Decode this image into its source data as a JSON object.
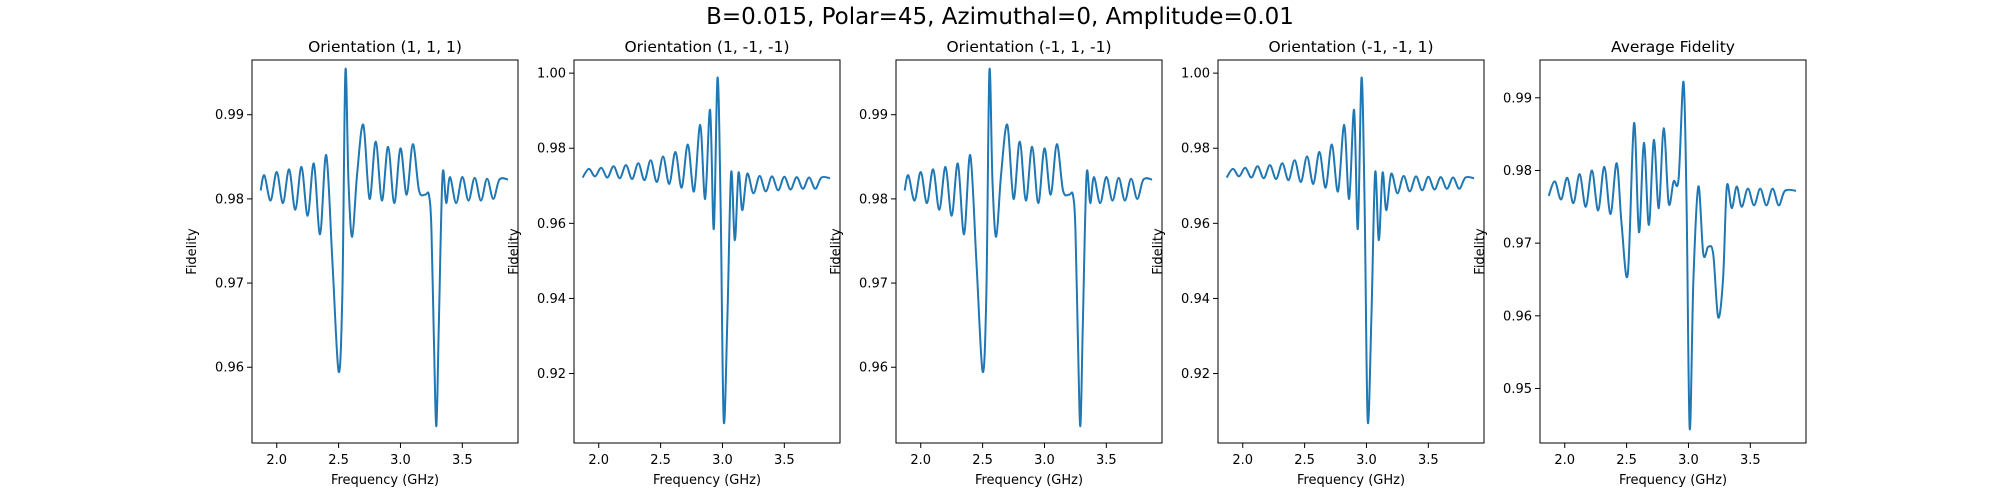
{
  "figure": {
    "suptitle": "B=0.015, Polar=45, Azimuthal=0, Amplitude=0.01"
  },
  "style": {
    "line_color": "#1f77b4",
    "axis_color": "#000000"
  },
  "chart_data": [
    {
      "type": "line",
      "title": "Orientation (1, 1, 1)",
      "xlabel": "Frequency (GHz)",
      "ylabel": "Fidelity",
      "xlim": [
        1.8,
        3.95
      ],
      "ylim": [
        0.951,
        0.9965
      ],
      "xticks": [
        "2.0",
        "2.5",
        "3.0",
        "3.5"
      ],
      "yticks": [
        "0.96",
        "0.97",
        "0.98",
        "0.99"
      ],
      "series": [
        {
          "x": [
            1.87,
            1.9,
            1.95,
            2.0,
            2.05,
            2.1,
            2.15,
            2.2,
            2.25,
            2.3,
            2.35,
            2.4,
            2.45,
            2.5,
            2.53,
            2.555,
            2.58,
            2.61,
            2.65,
            2.7,
            2.75,
            2.8,
            2.85,
            2.9,
            2.95,
            3.0,
            3.05,
            3.1,
            3.15,
            3.2,
            3.23,
            3.25,
            3.27,
            3.29,
            3.31,
            3.34,
            3.37,
            3.4,
            3.45,
            3.5,
            3.55,
            3.6,
            3.65,
            3.7,
            3.75,
            3.8,
            3.87
          ],
          "y": [
            0.981,
            0.9828,
            0.9798,
            0.9832,
            0.9795,
            0.9835,
            0.9787,
            0.9838,
            0.978,
            0.9842,
            0.9758,
            0.9852,
            0.9725,
            0.9595,
            0.9685,
            0.9952,
            0.982,
            0.9755,
            0.983,
            0.9888,
            0.98,
            0.9868,
            0.9798,
            0.9862,
            0.9795,
            0.986,
            0.9805,
            0.9865,
            0.981,
            0.9805,
            0.9805,
            0.9765,
            0.9635,
            0.953,
            0.965,
            0.9828,
            0.9795,
            0.9826,
            0.9795,
            0.9826,
            0.9798,
            0.9825,
            0.9798,
            0.9824,
            0.98,
            0.9823,
            0.9823
          ]
        }
      ]
    },
    {
      "type": "line",
      "title": "Orientation (1, -1, -1)",
      "xlabel": "Frequency (GHz)",
      "ylabel": "Fidelity",
      "xlim": [
        1.8,
        3.95
      ],
      "ylim": [
        0.9015,
        1.0035
      ],
      "xticks": [
        "2.0",
        "2.5",
        "3.0",
        "3.5"
      ],
      "yticks": [
        "0.92",
        "0.94",
        "0.96",
        "0.98",
        "1.00"
      ],
      "series": [
        {
          "x": [
            1.87,
            1.92,
            1.97,
            2.02,
            2.07,
            2.12,
            2.17,
            2.22,
            2.27,
            2.32,
            2.37,
            2.42,
            2.47,
            2.52,
            2.57,
            2.62,
            2.67,
            2.72,
            2.77,
            2.82,
            2.86,
            2.9,
            2.93,
            2.96,
            2.985,
            3.01,
            3.04,
            3.07,
            3.1,
            3.13,
            3.16,
            3.2,
            3.25,
            3.3,
            3.35,
            3.4,
            3.45,
            3.5,
            3.55,
            3.6,
            3.65,
            3.7,
            3.75,
            3.8,
            3.87
          ],
          "y": [
            0.9722,
            0.9745,
            0.9725,
            0.9748,
            0.9722,
            0.9752,
            0.972,
            0.9755,
            0.9718,
            0.976,
            0.9715,
            0.9768,
            0.971,
            0.9778,
            0.9705,
            0.979,
            0.9695,
            0.981,
            0.9685,
            0.9862,
            0.9665,
            0.9902,
            0.9585,
            0.9988,
            0.965,
            0.9075,
            0.935,
            0.9735,
            0.9555,
            0.9735,
            0.9635,
            0.9732,
            0.968,
            0.9726,
            0.9685,
            0.9725,
            0.9688,
            0.9724,
            0.969,
            0.9723,
            0.9692,
            0.9722,
            0.9692,
            0.9722,
            0.972
          ]
        }
      ]
    },
    {
      "type": "line",
      "title": "Orientation (-1, 1, -1)",
      "xlabel": "Frequency (GHz)",
      "ylabel": "Fidelity",
      "xlim": [
        1.8,
        3.95
      ],
      "ylim": [
        0.951,
        0.9965
      ],
      "xticks": [
        "2.0",
        "2.5",
        "3.0",
        "3.5"
      ],
      "yticks": [
        "0.96",
        "0.97",
        "0.98",
        "0.99"
      ],
      "series": [
        {
          "x": [
            1.87,
            1.9,
            1.95,
            2.0,
            2.05,
            2.1,
            2.15,
            2.2,
            2.25,
            2.3,
            2.35,
            2.4,
            2.45,
            2.5,
            2.53,
            2.555,
            2.58,
            2.61,
            2.65,
            2.7,
            2.75,
            2.8,
            2.85,
            2.9,
            2.95,
            3.0,
            3.05,
            3.1,
            3.15,
            3.2,
            3.23,
            3.25,
            3.27,
            3.29,
            3.31,
            3.34,
            3.37,
            3.4,
            3.45,
            3.5,
            3.55,
            3.6,
            3.65,
            3.7,
            3.75,
            3.8,
            3.87
          ],
          "y": [
            0.981,
            0.9828,
            0.9798,
            0.9832,
            0.9795,
            0.9835,
            0.9787,
            0.9838,
            0.978,
            0.9842,
            0.9758,
            0.9852,
            0.9725,
            0.9595,
            0.9685,
            0.9952,
            0.982,
            0.9755,
            0.983,
            0.9888,
            0.98,
            0.9868,
            0.9798,
            0.9862,
            0.9795,
            0.986,
            0.9805,
            0.9865,
            0.981,
            0.9805,
            0.9805,
            0.9765,
            0.9635,
            0.953,
            0.965,
            0.9828,
            0.9795,
            0.9826,
            0.9795,
            0.9826,
            0.9798,
            0.9825,
            0.9798,
            0.9824,
            0.98,
            0.9823,
            0.9823
          ]
        }
      ]
    },
    {
      "type": "line",
      "title": "Orientation (-1, -1, 1)",
      "xlabel": "Frequency (GHz)",
      "ylabel": "Fidelity",
      "xlim": [
        1.8,
        3.95
      ],
      "ylim": [
        0.9015,
        1.0035
      ],
      "xticks": [
        "2.0",
        "2.5",
        "3.0",
        "3.5"
      ],
      "yticks": [
        "0.92",
        "0.94",
        "0.96",
        "0.98",
        "1.00"
      ],
      "series": [
        {
          "x": [
            1.87,
            1.92,
            1.97,
            2.02,
            2.07,
            2.12,
            2.17,
            2.22,
            2.27,
            2.32,
            2.37,
            2.42,
            2.47,
            2.52,
            2.57,
            2.62,
            2.67,
            2.72,
            2.77,
            2.82,
            2.86,
            2.9,
            2.93,
            2.96,
            2.985,
            3.01,
            3.04,
            3.07,
            3.1,
            3.13,
            3.16,
            3.2,
            3.25,
            3.3,
            3.35,
            3.4,
            3.45,
            3.5,
            3.55,
            3.6,
            3.65,
            3.7,
            3.75,
            3.8,
            3.87
          ],
          "y": [
            0.9722,
            0.9745,
            0.9725,
            0.9748,
            0.9722,
            0.9752,
            0.972,
            0.9755,
            0.9718,
            0.976,
            0.9715,
            0.9768,
            0.971,
            0.9778,
            0.9705,
            0.979,
            0.9695,
            0.981,
            0.9685,
            0.9862,
            0.9665,
            0.9902,
            0.9585,
            0.9988,
            0.965,
            0.9075,
            0.935,
            0.9735,
            0.9555,
            0.9735,
            0.9635,
            0.9732,
            0.968,
            0.9726,
            0.9685,
            0.9725,
            0.9688,
            0.9724,
            0.969,
            0.9723,
            0.9692,
            0.9722,
            0.9692,
            0.9722,
            0.972
          ]
        }
      ]
    },
    {
      "type": "line",
      "title": "Average Fidelity",
      "xlabel": "Frequency (GHz)",
      "ylabel": "Fidelity",
      "xlim": [
        1.8,
        3.95
      ],
      "ylim": [
        0.9425,
        0.9952
      ],
      "xticks": [
        "2.0",
        "2.5",
        "3.0",
        "3.5"
      ],
      "yticks": [
        "0.95",
        "0.96",
        "0.97",
        "0.98",
        "0.99"
      ],
      "series": [
        {
          "x": [
            1.87,
            1.92,
            1.97,
            2.02,
            2.07,
            2.12,
            2.17,
            2.22,
            2.27,
            2.32,
            2.37,
            2.42,
            2.46,
            2.51,
            2.56,
            2.6,
            2.64,
            2.68,
            2.72,
            2.76,
            2.8,
            2.84,
            2.88,
            2.92,
            2.96,
            2.985,
            3.01,
            3.04,
            3.08,
            3.12,
            3.16,
            3.2,
            3.24,
            3.28,
            3.31,
            3.35,
            3.39,
            3.43,
            3.48,
            3.53,
            3.58,
            3.63,
            3.68,
            3.73,
            3.78,
            3.87
          ],
          "y": [
            0.9765,
            0.9785,
            0.976,
            0.979,
            0.9755,
            0.9795,
            0.975,
            0.98,
            0.9745,
            0.9805,
            0.974,
            0.981,
            0.9725,
            0.9658,
            0.9865,
            0.9715,
            0.9838,
            0.9725,
            0.9842,
            0.9748,
            0.9858,
            0.9755,
            0.9785,
            0.9788,
            0.9922,
            0.975,
            0.9445,
            0.965,
            0.9778,
            0.9685,
            0.9695,
            0.9685,
            0.9598,
            0.9652,
            0.9778,
            0.9748,
            0.9778,
            0.975,
            0.9775,
            0.9752,
            0.9775,
            0.9752,
            0.9775,
            0.9752,
            0.9772,
            0.9772
          ]
        }
      ]
    }
  ]
}
